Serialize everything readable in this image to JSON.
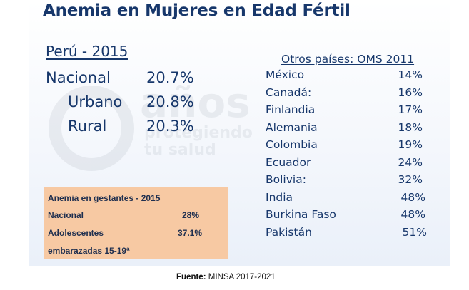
{
  "title": "Anemia en Mujeres en Edad Fértil",
  "watermark": {
    "line1": "años",
    "line2": "protegiendo",
    "line3": "tu salud"
  },
  "peru": {
    "heading": "Perú - 2015",
    "rows": [
      {
        "label": "Nacional",
        "value": "20.7%"
      },
      {
        "label": "Urbano",
        "value": "20.8%"
      },
      {
        "label": "Rural",
        "value": "20.3%"
      }
    ]
  },
  "other_countries": {
    "heading": "Otros países: OMS 2011",
    "rows": [
      {
        "name": "México",
        "value": "14%"
      },
      {
        "name": "Canadá:",
        "value": "16%"
      },
      {
        "name": "Finlandia",
        "value": "17%"
      },
      {
        "name": "Alemania",
        "value": "18%"
      },
      {
        "name": "Colombia",
        "value": "19%"
      },
      {
        "name": "Ecuador",
        "value": "24%"
      },
      {
        "name": "Bolivia:",
        "value": "32%"
      },
      {
        "name": "India",
        "value": "48%"
      },
      {
        "name": "Burkina Faso",
        "value": "48%"
      },
      {
        "name": "Pakistán",
        "value": "51%"
      }
    ]
  },
  "pregnant": {
    "heading": "Anemia en gestantes - 2015",
    "rows": [
      {
        "label": "Nacional",
        "value": "28%"
      },
      {
        "label": "Adolescentes",
        "value": "37.1%"
      }
    ],
    "note": "embarazadas 15-19ª"
  },
  "source": {
    "label": "Fuente:",
    "text": "MINSA 2017-2021"
  },
  "colors": {
    "title": "#17376b",
    "text": "#17376b",
    "box": "#f7c9a3"
  }
}
